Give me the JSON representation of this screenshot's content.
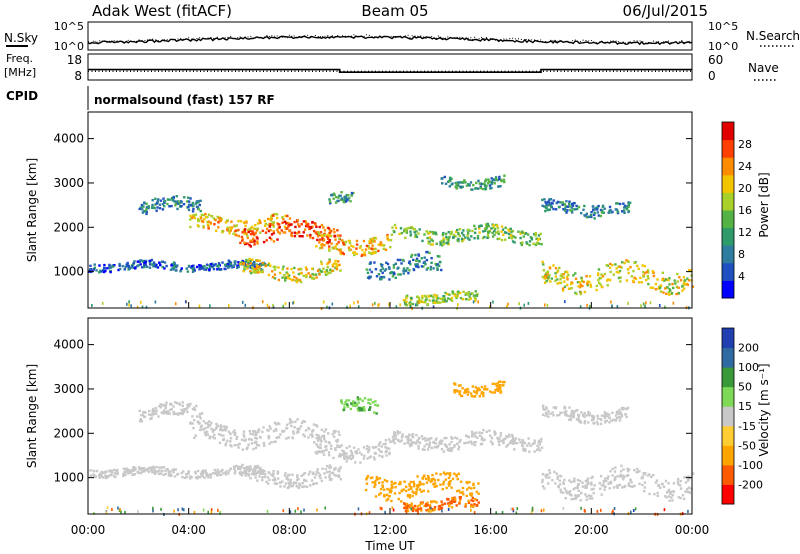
{
  "header": {
    "station": "Adak West (fitACF)",
    "beam": "Beam 05",
    "date": "06/Jul/2015"
  },
  "noise_panel": {
    "left_label": "N.Sky",
    "right_label": "N.Search",
    "left_ticks": [
      "10^5",
      "10^0"
    ],
    "right_ticks": [
      "10^5",
      "10^0"
    ]
  },
  "freq_panel": {
    "left_label_1": "Freq.",
    "left_label_2": "[MHz]",
    "right_label": "Nave",
    "left_ticks": [
      "18",
      "8"
    ],
    "right_ticks": [
      "60",
      "0"
    ],
    "freq_high_mhz": 12.0,
    "freq_low_mhz": 11.0,
    "freq_drop_hours": [
      10.0,
      18.0
    ],
    "nave_level": 20
  },
  "cpid": {
    "label": "CPID",
    "text": "normalsound (fast) 157 RF"
  },
  "chart_data": [
    {
      "type": "heatmap",
      "name": "power",
      "ylabel": "Slant Range [km]",
      "xlabel": "Time UT",
      "xlim_hours": [
        0,
        24
      ],
      "ylim_km": [
        180,
        4600
      ],
      "y_ticks": [
        "1000",
        "2000",
        "3000",
        "4000"
      ],
      "colorbar_label": "Power [dB]",
      "colorbar_ticks": [
        "28",
        "24",
        "20",
        "16",
        "12",
        "8",
        "4"
      ],
      "colorbar_colors": [
        "#0000ff",
        "#1f4fc0",
        "#2e7da0",
        "#2f9a6a",
        "#55b245",
        "#a8cf2a",
        "#f2c500",
        "#ff8c00",
        "#ff4000",
        "#e00000"
      ],
      "echo_bands": [
        {
          "t0": 0.0,
          "t1": 7.0,
          "r": 1150,
          "w": 90,
          "p": 6
        },
        {
          "t0": 2.0,
          "t1": 4.5,
          "r": 2500,
          "w": 150,
          "p": 8
        },
        {
          "t0": 4.0,
          "t1": 8.0,
          "r": 2100,
          "w": 170,
          "p": 20
        },
        {
          "t0": 6.0,
          "t1": 10.0,
          "r": 1900,
          "w": 190,
          "p": 26
        },
        {
          "t0": 9.0,
          "t1": 12.0,
          "r": 1650,
          "w": 180,
          "p": 20
        },
        {
          "t0": 12.0,
          "t1": 18.0,
          "r": 1850,
          "w": 160,
          "p": 14
        },
        {
          "t0": 6.0,
          "t1": 10.0,
          "r": 1050,
          "w": 170,
          "p": 18
        },
        {
          "t0": 9.5,
          "t1": 10.5,
          "r": 2650,
          "w": 120,
          "p": 10
        },
        {
          "t0": 11.0,
          "t1": 14.0,
          "r": 1150,
          "w": 200,
          "p": 8
        },
        {
          "t0": 14.0,
          "t1": 16.5,
          "r": 3050,
          "w": 120,
          "p": 10
        },
        {
          "t0": 12.5,
          "t1": 15.5,
          "r": 430,
          "w": 110,
          "p": 16
        },
        {
          "t0": 18.0,
          "t1": 24.0,
          "r": 900,
          "w": 250,
          "p": 18
        },
        {
          "t0": 18.0,
          "t1": 21.5,
          "r": 2450,
          "w": 140,
          "p": 8
        }
      ]
    },
    {
      "type": "heatmap",
      "name": "velocity",
      "ylabel": "Slant Range [km]",
      "xlabel": "Time UT",
      "xlim_hours": [
        0,
        24
      ],
      "ylim_km": [
        180,
        4600
      ],
      "y_ticks": [
        "1000",
        "2000",
        "3000",
        "4000"
      ],
      "x_ticks": [
        "00:00",
        "04:00",
        "08:00",
        "12:00",
        "16:00",
        "20:00",
        "00:00"
      ],
      "colorbar_label": "Velocity [m s⁻¹]",
      "colorbar_ticks": [
        "200",
        "100",
        "50",
        "15",
        "-15",
        "-50",
        "-100",
        "-200"
      ],
      "colorbar_colors": [
        "#ff0000",
        "#ff5a00",
        "#ffa500",
        "#ffcc33",
        "#c8c8c8",
        "#7ed957",
        "#3a9a3a",
        "#2f6aa0",
        "#1f3fb0"
      ],
      "echo_bands": [
        {
          "t0": 0.0,
          "t1": 7.0,
          "r": 1150,
          "w": 90,
          "v": 0
        },
        {
          "t0": 2.0,
          "t1": 4.5,
          "r": 2500,
          "w": 150,
          "v": 0
        },
        {
          "t0": 4.0,
          "t1": 10.0,
          "r": 2000,
          "w": 220,
          "v": 0
        },
        {
          "t0": 6.0,
          "t1": 10.0,
          "r": 1050,
          "w": 170,
          "v": 0
        },
        {
          "t0": 9.0,
          "t1": 12.0,
          "r": 1650,
          "w": 180,
          "v": 0
        },
        {
          "t0": 12.0,
          "t1": 18.0,
          "r": 1850,
          "w": 160,
          "v": 0
        },
        {
          "t0": 10.0,
          "t1": 11.5,
          "r": 2600,
          "w": 150,
          "v": 30
        },
        {
          "t0": 14.5,
          "t1": 16.5,
          "r": 3050,
          "w": 130,
          "v": -60
        },
        {
          "t0": 11.0,
          "t1": 15.5,
          "r": 850,
          "w": 230,
          "v": -60
        },
        {
          "t0": 12.5,
          "t1": 15.5,
          "r": 420,
          "w": 110,
          "v": -80
        },
        {
          "t0": 18.0,
          "t1": 24.0,
          "r": 900,
          "w": 250,
          "v": 0
        },
        {
          "t0": 18.0,
          "t1": 21.5,
          "r": 2450,
          "w": 140,
          "v": 0
        }
      ]
    }
  ]
}
